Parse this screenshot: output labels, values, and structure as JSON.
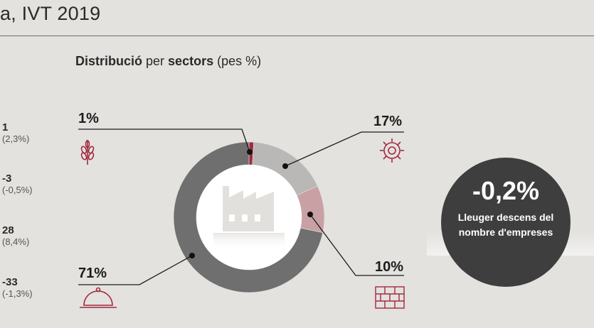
{
  "header": {
    "title": "a, IVT 2019"
  },
  "subtitle": {
    "bold1": "Distribució",
    "text1": " per ",
    "bold2": "sectors",
    "text2": " (pes %)"
  },
  "left_items": [
    {
      "value": "1",
      "pct": "(2,3%)"
    },
    {
      "value": "-3",
      "pct": "(-0,5%)"
    },
    {
      "value": "28",
      "pct": "(8,4%)"
    },
    {
      "value": "-33",
      "pct": "(-1,3%)"
    }
  ],
  "chart_data": {
    "type": "pie",
    "donut": true,
    "title": "",
    "slices": [
      {
        "label": "1%",
        "value": 1,
        "color": "#a3293e",
        "icon": "wheat-icon"
      },
      {
        "label": "17%",
        "value": 17,
        "color": "#b9b8b6",
        "icon": "gear-icon"
      },
      {
        "label": "10%",
        "value": 10,
        "color": "#c9a0a4",
        "icon": "brick-wall-icon"
      },
      {
        "label": "71%",
        "value": 71,
        "color": "#6f6f6f",
        "icon": "cloche-icon"
      }
    ],
    "center_icon": "factory-icon"
  },
  "badge": {
    "value": "-0,2%",
    "line1": "Lleuger descens del",
    "line2": "nombre d'empreses",
    "color": "#3e3e3e"
  }
}
